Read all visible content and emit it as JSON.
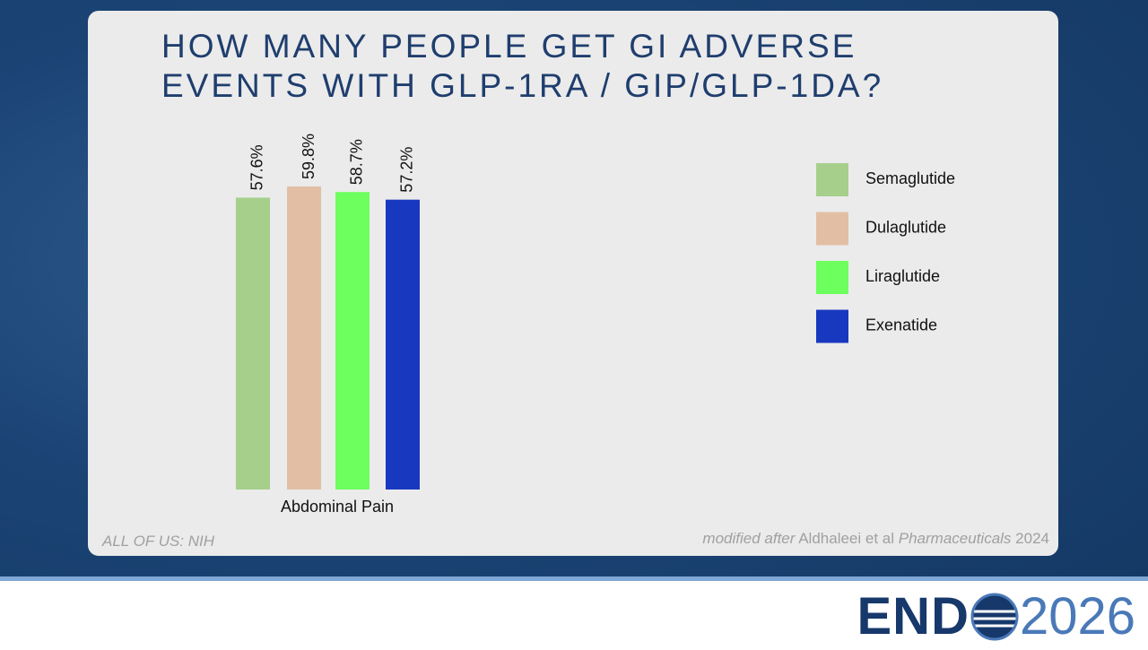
{
  "chart_data": {
    "type": "bar",
    "title": "HOW MANY PEOPLE GET GI ADVERSE EVENTS WITH GLP-1RA / GIP/GLP-1DA?",
    "categories": [
      "Abdominal Pain"
    ],
    "series": [
      {
        "name": "Semaglutide",
        "color": "#a6cf8c",
        "values": [
          57.6
        ],
        "value_labels": [
          "57.6%"
        ]
      },
      {
        "name": "Dulaglutide",
        "color": "#e2bfa4",
        "values": [
          59.8
        ],
        "value_labels": [
          "59.8%"
        ]
      },
      {
        "name": "Liraglutide",
        "color": "#6dff5e",
        "values": [
          58.7
        ],
        "value_labels": [
          "58.7%"
        ]
      },
      {
        "name": "Exenatide",
        "color": "#1838c0",
        "values": [
          57.2
        ],
        "value_labels": [
          "57.2%"
        ]
      }
    ],
    "legend": "right"
  },
  "slide": {
    "source": "ALL OF US: NIH",
    "citation": [
      "modified after",
      "Aldhaleei et al",
      "Pharmaceuticals",
      "2024"
    ],
    "logo": {
      "brand": "END",
      "year": "2026"
    }
  }
}
